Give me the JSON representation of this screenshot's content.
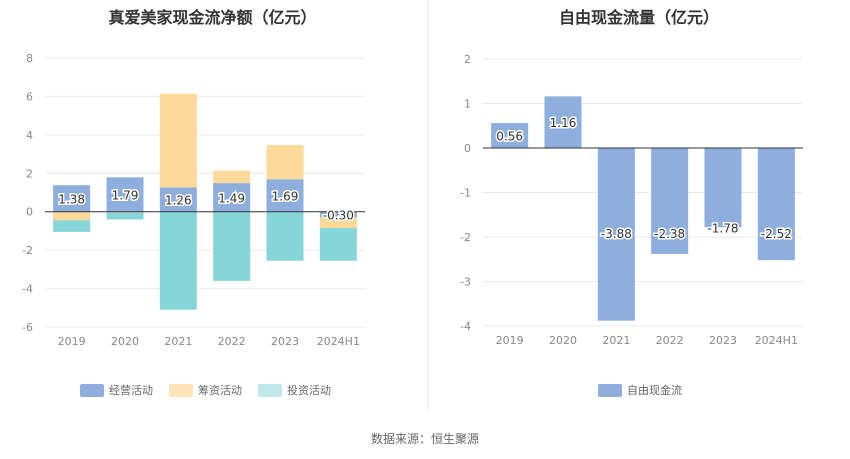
{
  "source_label": "数据来源：恒生聚源",
  "colors": {
    "operating": "#8eaedd",
    "financing": "#fdd99a",
    "investing": "#86d5d8",
    "fcf": "#8eaedd",
    "grid": "#e8e8ee",
    "axis": "#333333",
    "tick": "#888888"
  },
  "chart_data": [
    {
      "type": "bar",
      "stacked": true,
      "title": "真爱美家现金流净额（亿元）",
      "categories": [
        "2019",
        "2020",
        "2021",
        "2022",
        "2023",
        "2024H1"
      ],
      "ylim": [
        -6,
        8
      ],
      "yticks": [
        -6,
        -4,
        -2,
        0,
        2,
        4,
        6,
        8
      ],
      "series": [
        {
          "name": "经营活动",
          "key": "operating",
          "values": [
            1.38,
            1.79,
            1.26,
            1.49,
            1.69,
            -0.3
          ],
          "labels": [
            "1.38",
            "1.79",
            "1.26",
            "1.49",
            "1.69",
            "-0.30"
          ]
        },
        {
          "name": "筹资活动",
          "key": "financing",
          "values": [
            -0.45,
            -0.05,
            4.88,
            0.65,
            1.78,
            -0.55
          ],
          "labels": null
        },
        {
          "name": "投资活动",
          "key": "investing",
          "values": [
            -0.6,
            -0.35,
            -5.1,
            -3.6,
            -2.55,
            -1.7
          ],
          "labels": null
        }
      ],
      "legend": [
        "经营活动",
        "筹资活动",
        "投资活动"
      ]
    },
    {
      "type": "bar",
      "title": "自由现金流量（亿元）",
      "categories": [
        "2019",
        "2020",
        "2021",
        "2022",
        "2023",
        "2024H1"
      ],
      "ylim": [
        -4,
        2
      ],
      "yticks": [
        -4,
        -3,
        -2,
        -1,
        0,
        1,
        2
      ],
      "series": [
        {
          "name": "自由现金流",
          "key": "fcf",
          "values": [
            0.56,
            1.16,
            -3.88,
            -2.38,
            -1.78,
            -2.52
          ],
          "labels": [
            "0.56",
            "1.16",
            "-3.88",
            "-2.38",
            "-1.78",
            "-2.52"
          ]
        }
      ],
      "legend": [
        "自由现金流"
      ]
    }
  ]
}
